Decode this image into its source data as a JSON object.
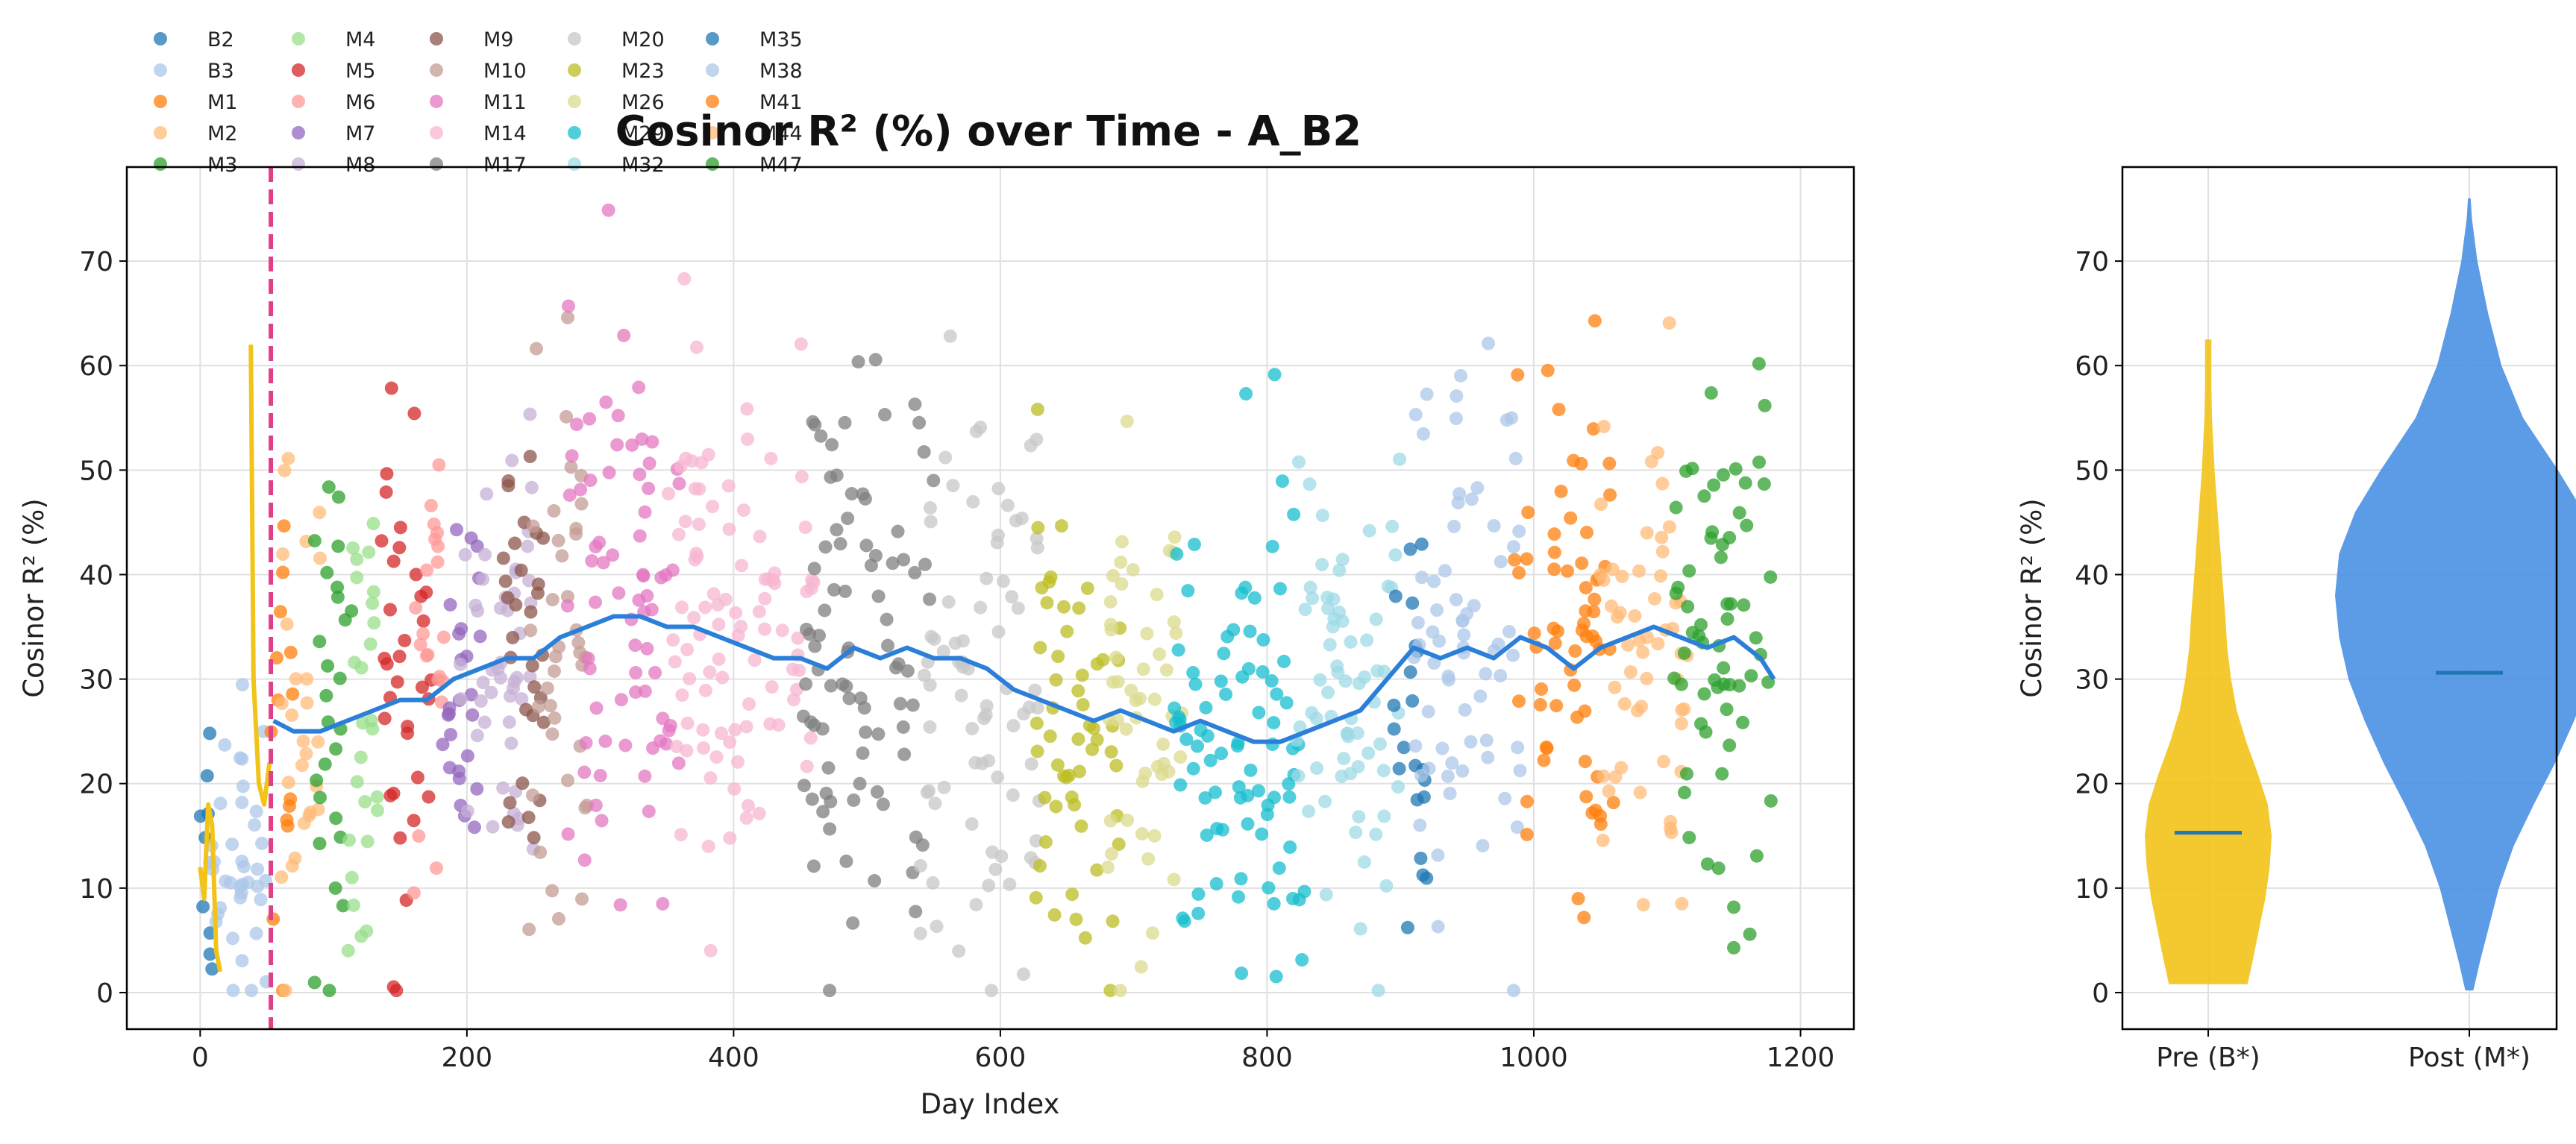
{
  "colors": {
    "B2": "#1f77b4",
    "B3": "#aec7e8",
    "M1": "#ff7f0e",
    "M2": "#ffbb78",
    "M3": "#2ca02c",
    "M4": "#98df8a",
    "M5": "#d62728",
    "M6": "#ff9896",
    "M7": "#9467bd",
    "M8": "#c5b0d5",
    "M9": "#8c564b",
    "M10": "#c49c94",
    "M11": "#e377c2",
    "M14": "#f7b6d2",
    "M17": "#7f7f7f",
    "M20": "#c7c7c7",
    "M23": "#bcbd22",
    "M26": "#dbdb8d",
    "M29": "#17becf",
    "M32": "#9edae5",
    "M35": "#1f77b4",
    "M38": "#aec7e8",
    "M41": "#ff7f0e",
    "M44": "#ffbb78",
    "M47": "#2ca02c",
    "rolling_post": "#2c7fd8",
    "rolling_pre": "#f2c318",
    "transition": "#e0408a",
    "violin_pre": "#f2c318",
    "violin_post": "#4a90e2",
    "median": "#1f77b4"
  },
  "chart_data": [
    {
      "type": "scatter",
      "title": "Cosinor R² (%) over Time - A_B2",
      "xlabel": "Day Index",
      "ylabel": "Cosinor R² (%)",
      "xlim": [
        -55,
        1240
      ],
      "ylim": [
        -3.5,
        79
      ],
      "xticks": [
        "0",
        "200",
        "400",
        "600",
        "800",
        "1000",
        "1200"
      ],
      "yticks": [
        "0",
        "10",
        "20",
        "30",
        "40",
        "50",
        "60",
        "70"
      ],
      "grid": true,
      "legend_placement": "above plot, upper-left, 7 columns",
      "legend_entries": [
        "B2",
        "B3",
        "M1",
        "M2",
        "M3",
        "M4",
        "M5",
        "M6",
        "M7",
        "M8",
        "M9",
        "M10",
        "M11",
        "M14",
        "M17",
        "M20",
        "M23",
        "M26",
        "M29",
        "M32",
        "M35",
        "M38",
        "M41",
        "M44",
        "M47"
      ],
      "transition_day": 53,
      "segments": [
        {
          "name": "B2",
          "range": [
            0,
            10
          ],
          "mean": 12,
          "sd": 6
        },
        {
          "name": "B3",
          "range": [
            5,
            50
          ],
          "mean": 15,
          "sd": 10
        },
        {
          "name": "M1",
          "range": [
            53,
            70
          ],
          "mean": 22,
          "sd": 10
        },
        {
          "name": "M2",
          "range": [
            60,
            90
          ],
          "mean": 28,
          "sd": 12
        },
        {
          "name": "M3",
          "range": [
            85,
            115
          ],
          "mean": 27,
          "sd": 12
        },
        {
          "name": "M4",
          "range": [
            110,
            140
          ],
          "mean": 28,
          "sd": 12
        },
        {
          "name": "M5",
          "range": [
            135,
            175
          ],
          "mean": 28,
          "sd": 12
        },
        {
          "name": "M6",
          "range": [
            160,
            185
          ],
          "mean": 35,
          "sd": 12
        },
        {
          "name": "M7",
          "range": [
            180,
            210
          ],
          "mean": 30,
          "sd": 10
        },
        {
          "name": "M8",
          "range": [
            195,
            250
          ],
          "mean": 32,
          "sd": 12
        },
        {
          "name": "M9",
          "range": [
            225,
            260
          ],
          "mean": 33,
          "sd": 12
        },
        {
          "name": "M10",
          "range": [
            245,
            290
          ],
          "mean": 35,
          "sd": 12
        },
        {
          "name": "M11",
          "range": [
            275,
            360
          ],
          "mean": 38,
          "sd": 14
        },
        {
          "name": "M14",
          "range": [
            350,
            460
          ],
          "mean": 35,
          "sd": 13
        },
        {
          "name": "M17",
          "range": [
            450,
            550
          ],
          "mean": 32,
          "sd": 14
        },
        {
          "name": "M20",
          "range": [
            540,
            630
          ],
          "mean": 30,
          "sd": 14
        },
        {
          "name": "M23",
          "range": [
            625,
            690
          ],
          "mean": 27,
          "sd": 12
        },
        {
          "name": "M26",
          "range": [
            680,
            740
          ],
          "mean": 26,
          "sd": 13
        },
        {
          "name": "M29",
          "range": [
            730,
            830
          ],
          "mean": 25,
          "sd": 12
        },
        {
          "name": "M32",
          "range": [
            820,
            900
          ],
          "mean": 28,
          "sd": 12
        },
        {
          "name": "M35",
          "range": [
            895,
            920
          ],
          "mean": 30,
          "sd": 10
        },
        {
          "name": "M38",
          "range": [
            910,
            990
          ],
          "mean": 34,
          "sd": 12
        },
        {
          "name": "M41",
          "range": [
            985,
            1060
          ],
          "mean": 33,
          "sd": 12
        },
        {
          "name": "M44",
          "range": [
            1050,
            1115
          ],
          "mean": 33,
          "sd": 11
        },
        {
          "name": "M47",
          "range": [
            1105,
            1180
          ],
          "mean": 34,
          "sd": 12
        }
      ],
      "rolling_pre": [
        [
          0,
          12
        ],
        [
          3,
          9
        ],
        [
          6,
          18
        ],
        [
          9,
          16
        ],
        [
          12,
          4
        ],
        [
          15,
          2
        ]
      ],
      "rolling_pre2": [
        [
          38,
          62
        ],
        [
          40,
          30
        ],
        [
          44,
          20
        ],
        [
          48,
          18
        ],
        [
          52,
          22
        ]
      ],
      "rolling_post": [
        [
          55,
          26
        ],
        [
          70,
          25
        ],
        [
          90,
          25
        ],
        [
          110,
          26
        ],
        [
          130,
          27
        ],
        [
          150,
          28
        ],
        [
          170,
          28
        ],
        [
          190,
          30
        ],
        [
          210,
          31
        ],
        [
          230,
          32
        ],
        [
          250,
          32
        ],
        [
          270,
          34
        ],
        [
          290,
          35
        ],
        [
          310,
          36
        ],
        [
          330,
          36
        ],
        [
          350,
          35
        ],
        [
          370,
          35
        ],
        [
          390,
          34
        ],
        [
          410,
          33
        ],
        [
          430,
          32
        ],
        [
          450,
          32
        ],
        [
          470,
          31
        ],
        [
          490,
          33
        ],
        [
          510,
          32
        ],
        [
          530,
          33
        ],
        [
          550,
          32
        ],
        [
          570,
          32
        ],
        [
          590,
          31
        ],
        [
          610,
          29
        ],
        [
          630,
          28
        ],
        [
          650,
          27
        ],
        [
          670,
          26
        ],
        [
          690,
          27
        ],
        [
          710,
          26
        ],
        [
          730,
          25
        ],
        [
          750,
          26
        ],
        [
          770,
          25
        ],
        [
          790,
          24
        ],
        [
          810,
          24
        ],
        [
          830,
          25
        ],
        [
          850,
          26
        ],
        [
          870,
          27
        ],
        [
          890,
          30
        ],
        [
          910,
          33
        ],
        [
          930,
          32
        ],
        [
          950,
          33
        ],
        [
          970,
          32
        ],
        [
          990,
          34
        ],
        [
          1010,
          33
        ],
        [
          1030,
          31
        ],
        [
          1050,
          33
        ],
        [
          1070,
          34
        ],
        [
          1090,
          35
        ],
        [
          1110,
          34
        ],
        [
          1130,
          33
        ],
        [
          1150,
          34
        ],
        [
          1170,
          32
        ],
        [
          1180,
          30
        ]
      ]
    },
    {
      "type": "violin",
      "ylabel": "Cosinor R² (%)",
      "categories": [
        "Pre (B*)",
        "Post (M*)"
      ],
      "ylim": [
        -3.5,
        79
      ],
      "yticks": [
        "0",
        "10",
        "20",
        "30",
        "40",
        "50",
        "60",
        "70"
      ],
      "grid": true,
      "medians": [
        15.3,
        30.6
      ],
      "ranges": [
        [
          0.8,
          62.5
        ],
        [
          0.2,
          76
        ]
      ],
      "profiles": [
        [
          [
            0.8,
            0.62
          ],
          [
            3,
            0.7
          ],
          [
            6,
            0.8
          ],
          [
            9,
            0.9
          ],
          [
            12,
            0.97
          ],
          [
            15,
            1.0
          ],
          [
            18,
            0.94
          ],
          [
            21,
            0.78
          ],
          [
            24,
            0.6
          ],
          [
            27,
            0.45
          ],
          [
            30,
            0.36
          ],
          [
            33,
            0.3
          ],
          [
            36,
            0.27
          ],
          [
            40,
            0.22
          ],
          [
            45,
            0.16
          ],
          [
            50,
            0.1
          ],
          [
            55,
            0.06
          ],
          [
            58,
            0.05
          ],
          [
            62.5,
            0.05
          ]
        ],
        [
          [
            0.2,
            0.03
          ],
          [
            3,
            0.08
          ],
          [
            6,
            0.14
          ],
          [
            10,
            0.22
          ],
          [
            14,
            0.33
          ],
          [
            18,
            0.48
          ],
          [
            22,
            0.64
          ],
          [
            26,
            0.78
          ],
          [
            30,
            0.9
          ],
          [
            34,
            0.97
          ],
          [
            38,
            1.0
          ],
          [
            42,
            0.97
          ],
          [
            46,
            0.85
          ],
          [
            50,
            0.66
          ],
          [
            55,
            0.4
          ],
          [
            60,
            0.24
          ],
          [
            65,
            0.14
          ],
          [
            70,
            0.06
          ],
          [
            74,
            0.02
          ],
          [
            76,
            0.01
          ]
        ]
      ]
    }
  ]
}
